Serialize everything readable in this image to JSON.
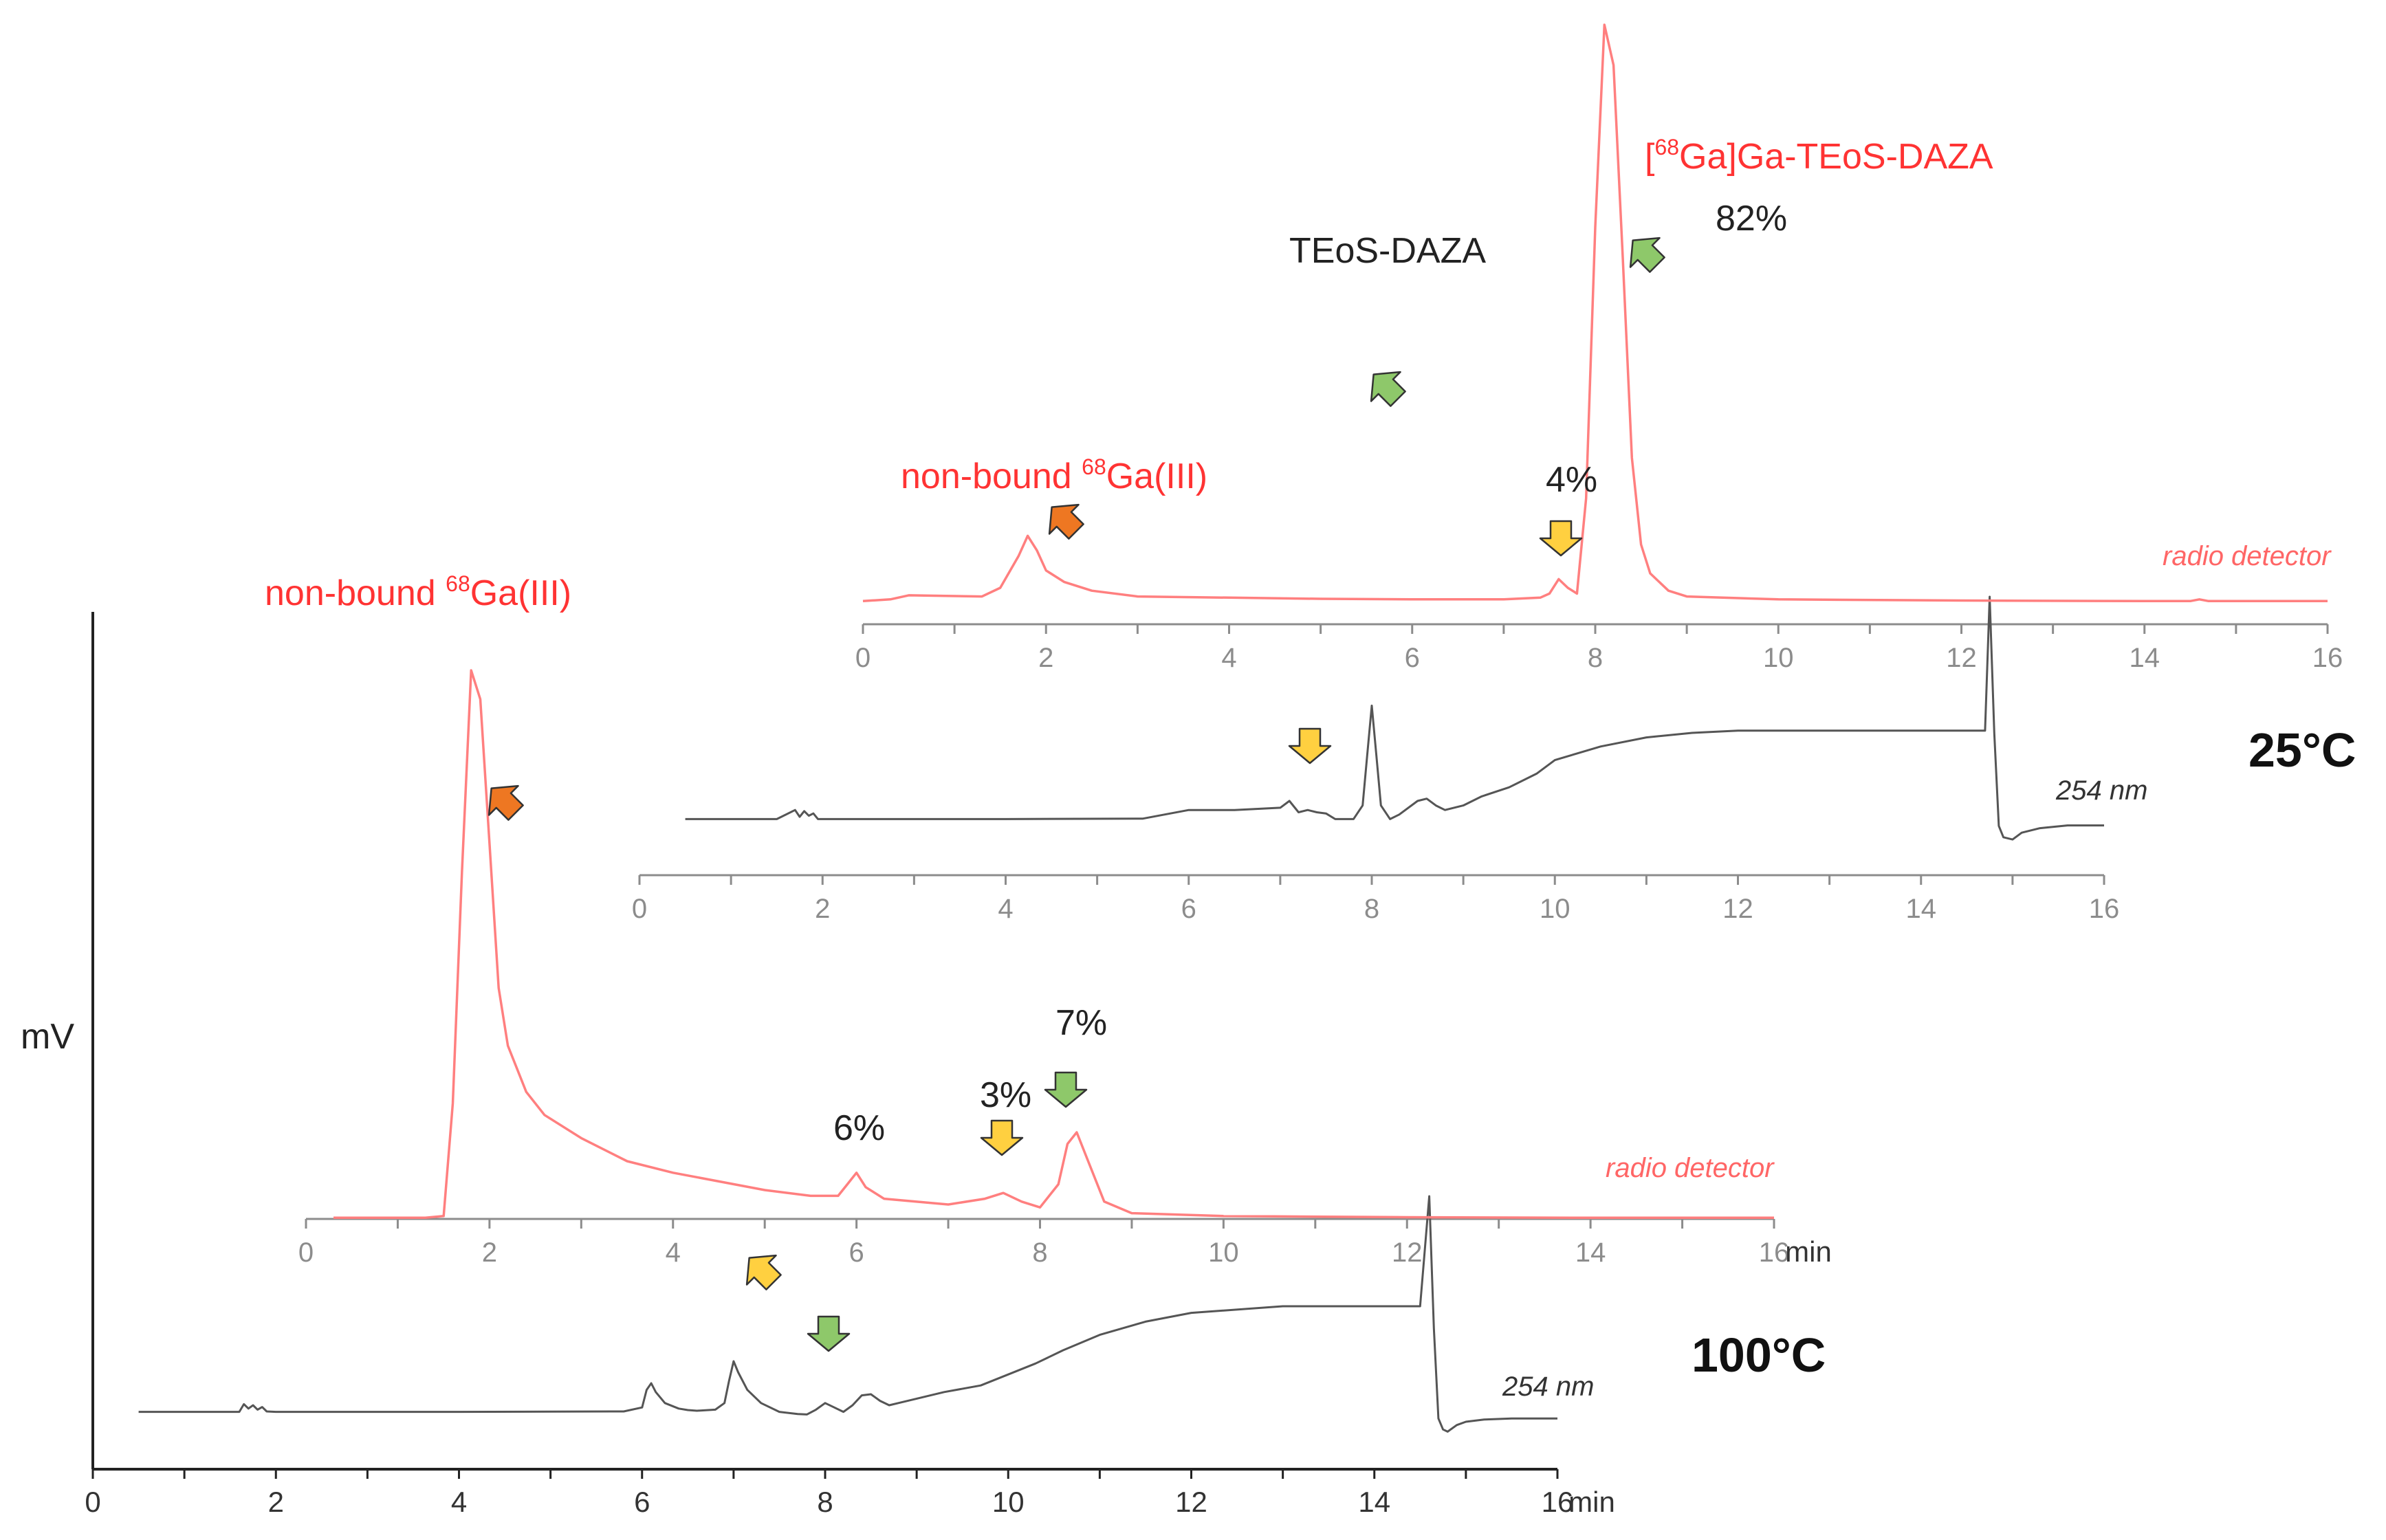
{
  "chart_data": {
    "type": "line",
    "title": "",
    "ylabel": "mV",
    "xlabel": "min",
    "panels": [
      {
        "name": "100°C",
        "temperature_label": "100°C",
        "uv_label": "254 nm",
        "radio_label": "radio detector",
        "uv_axis": {
          "xlim": [
            0,
            16
          ],
          "ticks": [
            "0",
            "2",
            "4",
            "6",
            "8",
            "10",
            "12",
            "14",
            "16"
          ],
          "unit": "min"
        },
        "radio_axis": {
          "xlim": [
            0,
            16
          ],
          "ticks": [
            "0",
            "2",
            "4",
            "6",
            "8",
            "10",
            "12",
            "14",
            "16"
          ],
          "unit": "min"
        },
        "series": [
          {
            "name": "254 nm",
            "x": [
              0.5,
              1.5,
              1.6,
              1.65,
              1.7,
              1.75,
              1.8,
              1.85,
              1.9,
              2.0,
              2.2,
              4.0,
              5.0,
              5.8,
              6.0,
              6.05,
              6.1,
              6.15,
              6.25,
              6.4,
              6.5,
              6.6,
              6.8,
              6.9,
              6.95,
              7.0,
              7.05,
              7.15,
              7.3,
              7.5,
              7.7,
              7.8,
              7.9,
              8.0,
              8.1,
              8.2,
              8.3,
              8.4,
              8.5,
              8.6,
              8.7,
              8.8,
              9.0,
              9.3,
              9.7,
              10.0,
              10.3,
              10.6,
              11.0,
              11.5,
              12.0,
              13.0,
              14.0,
              14.5,
              14.6,
              14.65,
              14.7,
              14.75,
              14.8,
              14.9,
              15.0,
              15.2,
              15.5,
              16.0
            ],
            "y": [
              20,
              20,
              20,
              55,
              35,
              50,
              30,
              42,
              22,
              20,
              20,
              20,
              21,
              22,
              40,
              120,
              150,
              110,
              60,
              35,
              28,
              25,
              30,
              60,
              160,
              250,
              200,
              120,
              60,
              20,
              10,
              8,
              30,
              60,
              40,
              20,
              50,
              95,
              100,
              70,
              50,
              60,
              80,
              110,
              140,
              190,
              240,
              300,
              370,
              430,
              470,
              500,
              500,
              500,
              1000,
              400,
              -10,
              -60,
              -70,
              -40,
              -25,
              -15,
              -10,
              -10
            ]
          },
          {
            "name": "radio detector",
            "x": [
              0.3,
              1.3,
              1.5,
              1.6,
              1.7,
              1.8,
              1.9,
              2.0,
              2.1,
              2.2,
              2.4,
              2.6,
              3.0,
              3.5,
              4.0,
              5.0,
              5.5,
              5.8,
              5.9,
              6.0,
              6.1,
              6.3,
              7.0,
              7.4,
              7.6,
              7.8,
              8.0,
              8.2,
              8.3,
              8.4,
              8.5,
              8.7,
              9.0,
              10.0,
              12.0,
              14.0,
              16.0
            ],
            "y": [
              2,
              2,
              5,
              200,
              600,
              950,
              900,
              650,
              400,
              300,
              220,
              180,
              140,
              100,
              80,
              50,
              40,
              40,
              60,
              80,
              55,
              35,
              25,
              35,
              45,
              30,
              20,
              60,
              130,
              150,
              110,
              30,
              10,
              5,
              3,
              2,
              2
            ]
          }
        ],
        "peak_labels": [
          "non-bound",
          "68",
          "Ga(III)",
          "6%",
          "3%",
          "7%"
        ]
      },
      {
        "name": "25°C",
        "temperature_label": "25°C",
        "uv_label": "254 nm",
        "radio_label": "radio detector",
        "uv_axis": {
          "xlim": [
            0,
            16
          ],
          "ticks": [
            "0",
            "2",
            "4",
            "6",
            "8",
            "10",
            "12",
            "14",
            "16"
          ],
          "unit": ""
        },
        "radio_axis": {
          "xlim": [
            0,
            16
          ],
          "ticks": [
            "0",
            "2",
            "4",
            "6",
            "8",
            "10",
            "12",
            "14",
            "16"
          ],
          "unit": ""
        },
        "series": [
          {
            "name": "254 nm",
            "x": [
              0.5,
              1.5,
              1.7,
              1.75,
              1.8,
              1.85,
              1.9,
              1.95,
              2.0,
              2.2,
              4.0,
              5.5,
              6.0,
              6.5,
              7.0,
              7.1,
              7.2,
              7.3,
              7.4,
              7.5,
              7.6,
              7.8,
              7.9,
              7.95,
              8.0,
              8.05,
              8.1,
              8.2,
              8.3,
              8.5,
              8.6,
              8.7,
              8.8,
              9.0,
              9.2,
              9.5,
              9.8,
              10.0,
              10.5,
              11.0,
              11.5,
              12.0,
              13.0,
              14.0,
              14.7,
              14.75,
              14.8,
              14.85,
              14.9,
              15.0,
              15.1,
              15.3,
              15.6,
              16.0
            ],
            "y": [
              20,
              20,
              60,
              30,
              55,
              35,
              45,
              20,
              20,
              20,
              20,
              22,
              60,
              60,
              70,
              100,
              50,
              60,
              50,
              45,
              20,
              20,
              80,
              300,
              520,
              300,
              80,
              20,
              40,
              100,
              110,
              80,
              60,
              80,
              120,
              160,
              220,
              280,
              340,
              380,
              400,
              410,
              410,
              410,
              410,
              1000,
              400,
              -10,
              -60,
              -70,
              -40,
              -20,
              -8,
              -8
            ]
          },
          {
            "name": "radio detector",
            "x": [
              0,
              0.3,
              0.5,
              1.3,
              1.5,
              1.7,
              1.8,
              1.9,
              2.0,
              2.2,
              2.5,
              3.0,
              4.0,
              5.0,
              6.0,
              7.0,
              7.4,
              7.5,
              7.6,
              7.7,
              7.8,
              7.9,
              8.0,
              8.1,
              8.2,
              8.3,
              8.4,
              8.5,
              8.6,
              8.8,
              9.0,
              10.0,
              12.0,
              14.0,
              14.5,
              14.6,
              14.7,
              16.0
            ],
            "y": [
              2,
              5,
              12,
              10,
              25,
              80,
              115,
              90,
              55,
              35,
              20,
              10,
              8,
              6,
              5,
              5,
              8,
              15,
              40,
              25,
              15,
              180,
              650,
              1000,
              930,
              600,
              250,
              100,
              50,
              20,
              10,
              5,
              3,
              2,
              2,
              5,
              2,
              2
            ]
          }
        ],
        "peak_labels": [
          "non-bound",
          "68",
          "Ga(III)",
          "TEoS-DAZA",
          "4%",
          "[",
          "68",
          "Ga]Ga-TEoS-DAZA",
          "82%"
        ]
      }
    ]
  }
}
